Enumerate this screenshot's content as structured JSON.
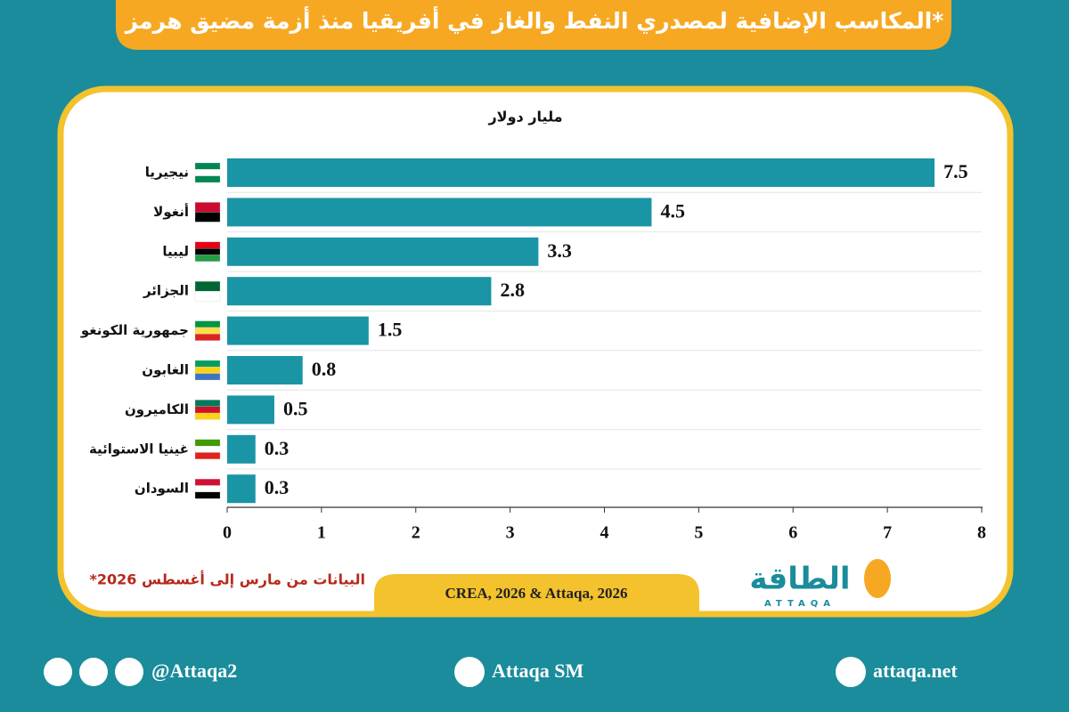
{
  "chart_data": {
    "type": "bar",
    "orientation": "horizontal",
    "title": "المكاسب الإضافية لمصدري النفط والغاز في أفريقيا منذ أزمة مضيق هرمز*",
    "x_label": "مليار دولار",
    "categories": [
      "نيجيريا",
      "أنغولا",
      "ليبيا",
      "الجزائر",
      "جمهورية الكونغو",
      "الغابون",
      "الكاميرون",
      "غينيا الاستوائية",
      "السودان"
    ],
    "values": [
      7.5,
      4.5,
      3.3,
      2.8,
      1.5,
      0.8,
      0.5,
      0.3,
      0.3
    ],
    "color": "#1a95a5",
    "xlim": [
      0,
      8
    ],
    "xticks": [
      0,
      1,
      2,
      3,
      4,
      5,
      6,
      7,
      8
    ],
    "note": "*البيانات من مارس إلى أغسطس 2026",
    "source": "CREA, 2026 & Attaqa, 2026"
  },
  "logo": {
    "name": "الطاقة",
    "latin": "ATTAQA"
  },
  "footer": {
    "handle": "@Attaqa2",
    "youtube": "Attaqa SM",
    "website": "attaqa.net"
  }
}
